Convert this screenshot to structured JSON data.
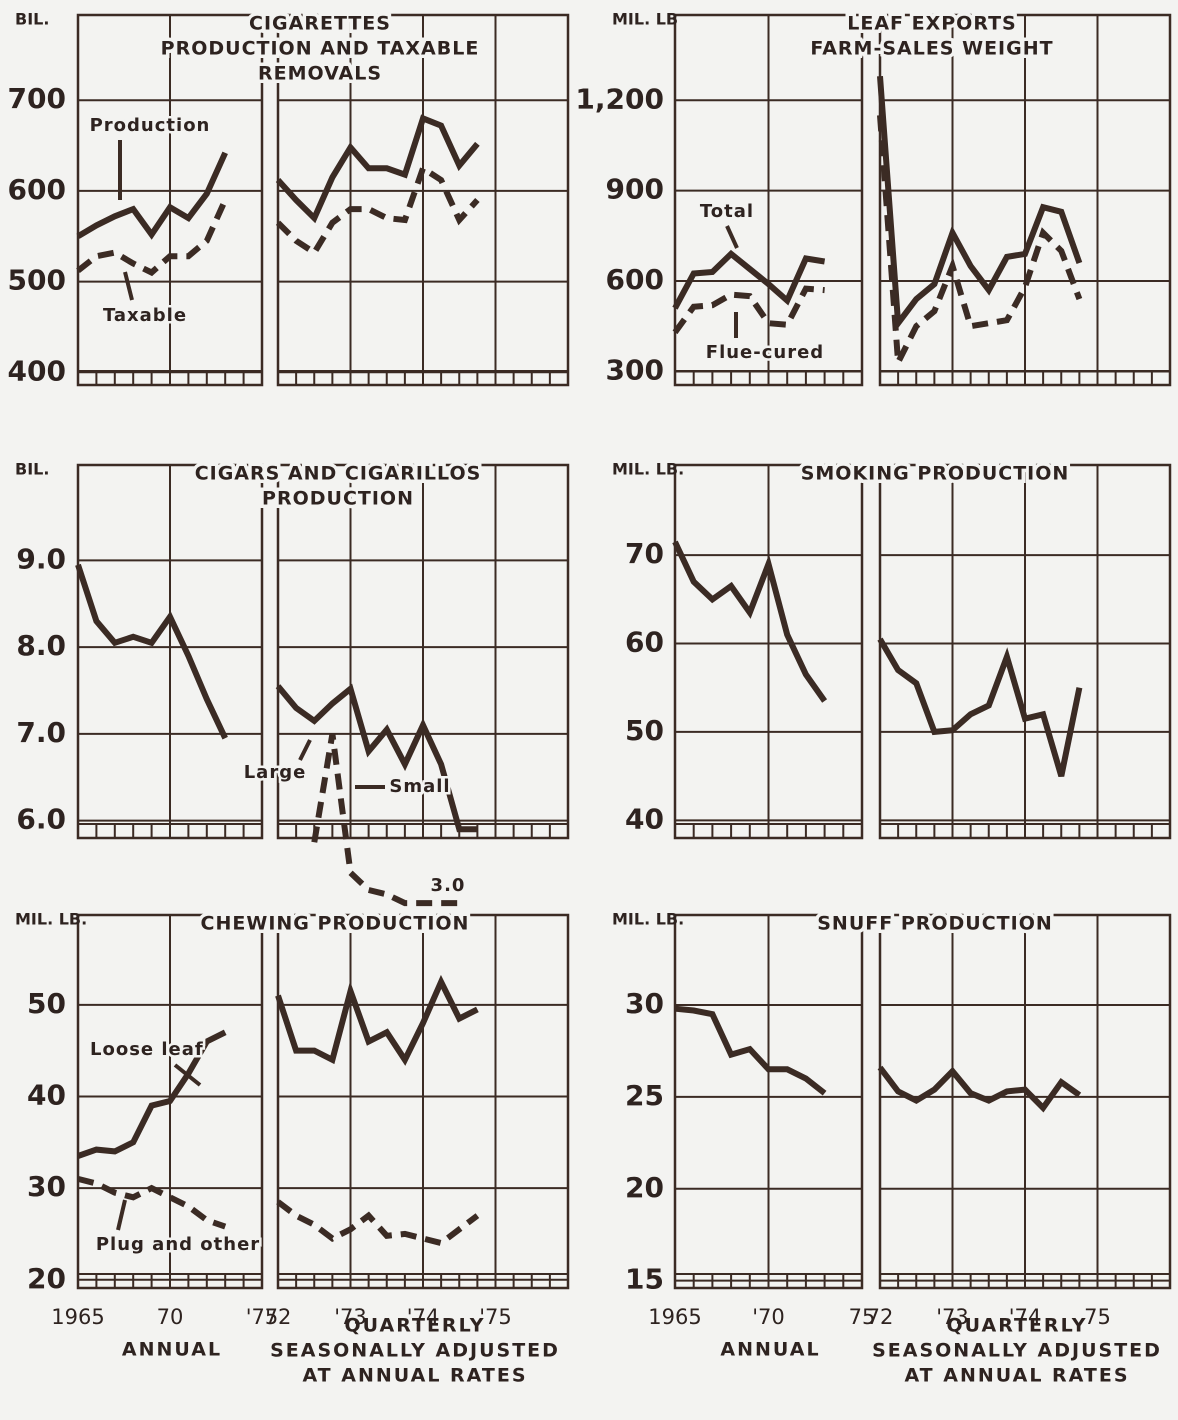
{
  "chart_data": [
    {
      "type": "line",
      "title": [
        "CIGARETTES",
        "PRODUCTION AND TAXABLE",
        "REMOVALS"
      ],
      "ylabel": "BIL.",
      "ylim": [
        386,
        794
      ],
      "yticks": [
        400,
        500,
        600,
        700
      ],
      "grid": true,
      "annual_xlim": [
        1965,
        1975
      ],
      "quarterly_xlim": [
        1972,
        1976
      ],
      "annual_x": [
        1965,
        1966,
        1967,
        1968,
        1969,
        1970,
        1971,
        1972,
        1973
      ],
      "quarterly_x": [
        1972,
        1972.25,
        1972.5,
        1972.75,
        1973,
        1973.25,
        1973.5,
        1973.75,
        1974,
        1974.25,
        1974.5,
        1974.75
      ],
      "series": [
        {
          "name": "Production",
          "color": "#3b2b24",
          "dashed": false,
          "annual": [
            550,
            562,
            572,
            580,
            552,
            582,
            570,
            597,
            642
          ],
          "quarterly": [
            612,
            590,
            570,
            615,
            648,
            625,
            625,
            618,
            680,
            672,
            628,
            652
          ]
        },
        {
          "name": "Taxable",
          "color": "#3b2b24",
          "dashed": true,
          "annual": [
            512,
            528,
            532,
            520,
            510,
            528,
            528,
            545,
            590
          ],
          "quarterly": [
            565,
            545,
            532,
            565,
            580,
            580,
            570,
            568,
            625,
            612,
            568,
            590
          ]
        }
      ]
    },
    {
      "type": "line",
      "title": [
        "LEAF EXPORTS",
        "FARM-SALES WEIGHT"
      ],
      "ylabel": "MIL. LB",
      "ylim": [
        255,
        1483
      ],
      "yticks": [
        300,
        600,
        900,
        {
          "value": 1200,
          "label": "1,200"
        }
      ],
      "grid": true,
      "annual_xlim": [
        1965,
        1975
      ],
      "quarterly_xlim": [
        1972,
        1976
      ],
      "annual_x": [
        1965,
        1966,
        1967,
        1968,
        1969,
        1970,
        1971,
        1972,
        1973
      ],
      "quarterly_x": [
        1972,
        1972.25,
        1972.5,
        1972.75,
        1973,
        1973.25,
        1973.5,
        1973.75,
        1974,
        1974.25,
        1974.5,
        1974.75
      ],
      "series": [
        {
          "name": "Total",
          "color": "#3b2b24",
          "dashed": false,
          "annual": [
            510,
            625,
            630,
            690,
            640,
            590,
            535,
            675,
            665
          ],
          "quarterly": [
            1280,
            460,
            540,
            590,
            760,
            650,
            570,
            680,
            690,
            845,
            830,
            660
          ]
        },
        {
          "name": "Flue-cured",
          "color": "#3b2b24",
          "dashed": true,
          "annual": [
            430,
            515,
            520,
            555,
            550,
            460,
            455,
            575,
            570
          ],
          "quarterly": [
            1150,
            330,
            450,
            500,
            650,
            450,
            460,
            470,
            580,
            760,
            700,
            540
          ]
        }
      ]
    },
    {
      "type": "line",
      "title": [
        "CIGARS AND CIGARILLOS",
        "PRODUCTION"
      ],
      "ylabel": "BIL.",
      "ylim": [
        5.8,
        10.1
      ],
      "yticks": [
        {
          "value": 6,
          "label": "6.0"
        },
        {
          "value": 7,
          "label": "7.0"
        },
        {
          "value": 8,
          "label": "8.0"
        },
        {
          "value": 9,
          "label": "9.0"
        }
      ],
      "grid": true,
      "annual_xlim": [
        1965,
        1975
      ],
      "quarterly_xlim": [
        1972,
        1976
      ],
      "annual_x": [
        1965,
        1966,
        1967,
        1968,
        1969,
        1970,
        1971,
        1972,
        1973
      ],
      "quarterly_x": [
        1972,
        1972.25,
        1972.5,
        1972.75,
        1973,
        1973.25,
        1973.5,
        1973.75,
        1974,
        1974.25,
        1974.5,
        1974.75
      ],
      "annotations": [
        "3.0"
      ],
      "series": [
        {
          "name": "Large",
          "color": "#3b2b24",
          "dashed": false,
          "annual": [
            8.95,
            8.3,
            8.05,
            8.12,
            8.05,
            8.35,
            7.9,
            7.4,
            6.95
          ],
          "quarterly": [
            7.55,
            7.3,
            7.15,
            7.35,
            7.52,
            6.8,
            7.05,
            6.65,
            7.1,
            6.65,
            5.9,
            5.9
          ]
        },
        {
          "name": "Small",
          "color": "#3b2b24",
          "dashed": true,
          "annual": [
            null,
            null,
            null,
            null,
            null,
            null,
            null,
            null,
            null
          ],
          "quarterly": [
            null,
            null,
            5.75,
            7.0,
            5.4,
            5.2,
            5.15,
            5.05,
            5.05,
            5.05,
            5.05,
            null
          ]
        }
      ]
    },
    {
      "type": "line",
      "title": [
        "SMOKING PRODUCTION"
      ],
      "ylabel": "MIL. LB.",
      "ylim": [
        38,
        80.2
      ],
      "yticks": [
        40,
        50,
        60,
        70
      ],
      "grid": true,
      "annual_xlim": [
        1965,
        1975
      ],
      "quarterly_xlim": [
        1972,
        1976
      ],
      "annual_x": [
        1965,
        1966,
        1967,
        1968,
        1969,
        1970,
        1971,
        1972,
        1973
      ],
      "quarterly_x": [
        1972,
        1972.25,
        1972.5,
        1972.75,
        1973,
        1973.25,
        1973.5,
        1973.75,
        1974,
        1974.25,
        1974.5,
        1974.75
      ],
      "series": [
        {
          "name": "Smoking",
          "color": "#3b2b24",
          "dashed": false,
          "annual": [
            71.5,
            67,
            65,
            66.5,
            63.5,
            69,
            61,
            56.5,
            53.5
          ],
          "quarterly": [
            60.5,
            57,
            55.5,
            50,
            50.2,
            52,
            53,
            58.5,
            51.5,
            52,
            45,
            55
          ]
        }
      ]
    },
    {
      "type": "line",
      "title": [
        "CHEWING PRODUCTION"
      ],
      "ylabel": "MIL. LB.",
      "ylim": [
        19.1,
        59.8
      ],
      "yticks": [
        20,
        30,
        40,
        50
      ],
      "grid": true,
      "annual_xlim": [
        1965,
        1975
      ],
      "quarterly_xlim": [
        1972,
        1976
      ],
      "annual_xticks": [
        1965,
        {
          "value": 1970,
          "label": "70"
        },
        {
          "value": 1975,
          "label": "'75"
        }
      ],
      "quarterly_xticks": [
        {
          "value": 1972,
          "label": "72"
        },
        {
          "value": 1973,
          "label": "'73"
        },
        {
          "value": 1974,
          "label": "'74"
        },
        {
          "value": 1975,
          "label": "'75"
        }
      ],
      "annual_label": "ANNUAL",
      "quarterly_label": [
        "QUARTERLY",
        "SEASONALLY ADJUSTED",
        "AT ANNUAL RATES"
      ],
      "annual_x": [
        1965,
        1966,
        1967,
        1968,
        1969,
        1970,
        1971,
        1972,
        1973
      ],
      "quarterly_x": [
        1972,
        1972.25,
        1972.5,
        1972.75,
        1973,
        1973.25,
        1973.5,
        1973.75,
        1974,
        1974.25,
        1974.5,
        1974.75
      ],
      "series": [
        {
          "name": "Loose leaf",
          "color": "#3b2b24",
          "dashed": false,
          "annual": [
            33.5,
            34.2,
            34,
            35,
            39,
            39.5,
            42.5,
            46,
            47
          ],
          "quarterly": [
            51,
            45,
            45,
            44,
            51.5,
            46,
            47,
            44,
            48,
            52.5,
            48.5,
            49.5
          ]
        },
        {
          "name": "Plug and other",
          "color": "#3b2b24",
          "dashed": true,
          "annual": [
            31,
            30.5,
            29.5,
            29,
            30,
            29,
            28,
            26.5,
            25.8
          ],
          "quarterly": [
            28.5,
            27,
            26,
            24.5,
            25.5,
            27,
            24.8,
            25,
            24.5,
            24,
            25.5,
            27
          ]
        }
      ]
    },
    {
      "type": "line",
      "title": [
        "SNUFF PRODUCTION"
      ],
      "ylabel": "MIL. LB.",
      "ylim": [
        14.6,
        34.9
      ],
      "yticks": [
        15,
        20,
        25,
        30
      ],
      "grid": true,
      "annual_xlim": [
        1965,
        1975
      ],
      "quarterly_xlim": [
        1972,
        1976
      ],
      "annual_xticks": [
        1965,
        {
          "value": 1970,
          "label": "'70"
        },
        {
          "value": 1975,
          "label": "75"
        }
      ],
      "quarterly_xticks": [
        {
          "value": 1972,
          "label": "72"
        },
        {
          "value": 1973,
          "label": "'73"
        },
        {
          "value": 1974,
          "label": "'74"
        },
        {
          "value": 1975,
          "label": "75"
        }
      ],
      "annual_label": "ANNUAL",
      "quarterly_label": [
        "QUARTERLY",
        "SEASONALLY ADJUSTED",
        "AT ANNUAL RATES"
      ],
      "annual_x": [
        1965,
        1966,
        1967,
        1968,
        1969,
        1970,
        1971,
        1972,
        1973
      ],
      "quarterly_x": [
        1972,
        1972.25,
        1972.5,
        1972.75,
        1973,
        1973.25,
        1973.5,
        1973.75,
        1974,
        1974.25,
        1974.5,
        1974.75
      ],
      "series": [
        {
          "name": "Snuff",
          "color": "#3b2b24",
          "dashed": false,
          "annual": [
            29.8,
            29.7,
            29.5,
            27.3,
            27.6,
            26.5,
            26.5,
            26.0,
            25.2
          ],
          "quarterly": [
            26.6,
            25.3,
            24.8,
            25.4,
            26.4,
            25.2,
            24.8,
            25.3,
            25.4,
            24.4,
            25.8,
            25.1
          ]
        }
      ]
    }
  ]
}
